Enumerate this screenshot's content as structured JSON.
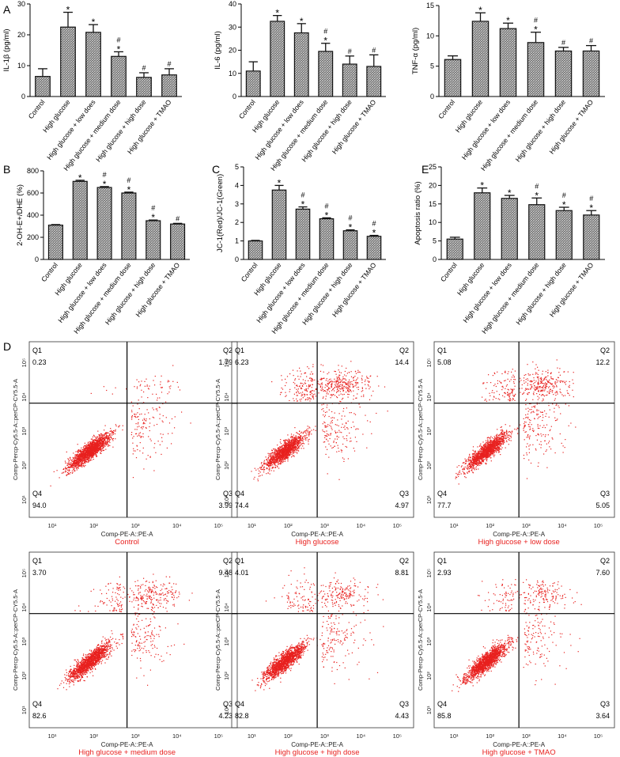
{
  "figure": {
    "panel_labels": [
      "A",
      "B",
      "C",
      "E",
      "D"
    ]
  },
  "colors": {
    "bar_fill": "#6e6e6e",
    "bar_hatch": "#ffffff",
    "axis": "#000000",
    "dot": "#e8211f",
    "caption": "#e8211f"
  },
  "chart_data": [
    {
      "id": "il1b",
      "type": "bar",
      "panel": "A",
      "ylabel": "IL-1β (pg/ml)",
      "categories": [
        "Control",
        "High glucose",
        "High glucose + low does",
        "High glucose + medium dose",
        "High glucose + high dose",
        "High glucose + TMAO"
      ],
      "values": [
        6.5,
        22.5,
        20.8,
        13,
        6.2,
        7
      ],
      "errors": [
        2.5,
        4.8,
        2.5,
        1.5,
        1.5,
        2
      ],
      "marks": [
        "",
        "*",
        "*",
        "#\n*",
        "#",
        "#"
      ],
      "ylim": [
        0,
        30
      ],
      "yticks": [
        0,
        10,
        20,
        30
      ]
    },
    {
      "id": "il6",
      "type": "bar",
      "panel": "",
      "ylabel": "IL-6 (pg/ml)",
      "categories": [
        "Control",
        "High glucose",
        "High glucose + low does",
        "High glucose + medium dose",
        "High glucose + high dose",
        "High glucose + TMAO"
      ],
      "values": [
        11,
        32.5,
        27.5,
        19.5,
        14,
        13
      ],
      "errors": [
        4,
        2.5,
        4,
        3.5,
        3.5,
        5
      ],
      "marks": [
        "",
        "*",
        "*",
        "#\n*",
        "#",
        "#"
      ],
      "ylim": [
        0,
        40
      ],
      "yticks": [
        0,
        10,
        20,
        30,
        40
      ]
    },
    {
      "id": "tnfa",
      "type": "bar",
      "panel": "",
      "ylabel": "TNF-α (pg/ml)",
      "categories": [
        "Control",
        "High glucose",
        "High glucose + low does",
        "High glucose + medium dose",
        "High glucose + high dose",
        "High glucose + TMAO"
      ],
      "values": [
        6.1,
        12.4,
        11.2,
        8.9,
        7.5,
        7.5
      ],
      "errors": [
        0.6,
        1.4,
        0.9,
        1.7,
        0.6,
        0.9
      ],
      "marks": [
        "",
        "*",
        "*",
        "#\n*",
        "#",
        "#"
      ],
      "ylim": [
        0,
        15
      ],
      "yticks": [
        0,
        5,
        10,
        15
      ]
    },
    {
      "id": "ros",
      "type": "bar",
      "panel": "B",
      "ylabel": "2-OH-E+/DHE (%)",
      "categories": [
        "Control",
        "High glucose",
        "High glucose + low does",
        "High glucose + medium dose",
        "High glucose + high dose",
        "High glucose + TMAO"
      ],
      "values": [
        310,
        705,
        650,
        600,
        350,
        320
      ],
      "errors": [
        5,
        10,
        8,
        8,
        6,
        6
      ],
      "marks": [
        "",
        "*",
        "#\n*",
        "#\n*",
        "#\n*",
        "#"
      ],
      "ylim": [
        0,
        800
      ],
      "yticks": [
        0,
        200,
        400,
        600,
        800
      ]
    },
    {
      "id": "jc1",
      "type": "bar",
      "panel": "C",
      "ylabel": "JC-1(Red)/JC-1(Green)",
      "categories": [
        "Control",
        "High glucose",
        "High glucose + low does",
        "High glucose + medium dose",
        "High glucose + high dose",
        "High glucose + TMAO"
      ],
      "values": [
        1,
        3.75,
        2.72,
        2.2,
        1.55,
        1.25
      ],
      "errors": [
        0.03,
        0.25,
        0.12,
        0.05,
        0.05,
        0.05
      ],
      "marks": [
        "",
        "*",
        "#\n*",
        "#\n*",
        "#\n*",
        "#\n*"
      ],
      "ylim": [
        0,
        5
      ],
      "yticks": [
        0,
        1,
        2,
        3,
        4,
        5
      ]
    },
    {
      "id": "apoptosis",
      "type": "bar",
      "panel": "E",
      "ylabel": "Apoptosis ratio (%)",
      "categories": [
        "Control",
        "High glucose",
        "High glucose + low does",
        "High glucose + medium dose",
        "High glucose + high dose",
        "High glucose + TMAO"
      ],
      "values": [
        5.5,
        18,
        16.5,
        14.8,
        13.2,
        12
      ],
      "errors": [
        0.5,
        1.3,
        0.8,
        1.8,
        0.9,
        1.2
      ],
      "marks": [
        "",
        "*",
        "*",
        "#\n*",
        "#\n*",
        "#\n*"
      ],
      "ylim": [
        0,
        25
      ],
      "yticks": [
        0,
        5,
        10,
        15,
        20,
        25
      ]
    },
    {
      "id": "flow",
      "type": "scatter",
      "panel": "D",
      "xlabel": "Comp-PE-A::PE-A",
      "ylabel": "Comp-Percp-Cy5.5-A::perCP-CY5.5-A",
      "xticks": [
        "10¹",
        "10²",
        "10³",
        "10⁴",
        "10⁵"
      ],
      "yticks": [
        "10¹",
        "10²",
        "10³",
        "10⁴",
        "10⁵"
      ],
      "quadrant_names": [
        "Q1",
        "Q2",
        "Q3",
        "Q4"
      ],
      "plots": [
        {
          "caption": "Control",
          "Q1": "0.23",
          "Q2": "1.79",
          "Q3": "3.99",
          "Q4": "94.0"
        },
        {
          "caption": "High glucose",
          "Q1": "6.23",
          "Q2": "14.4",
          "Q3": "4.97",
          "Q4": "74.4"
        },
        {
          "caption": "High glucose + low dose",
          "Q1": "5.08",
          "Q2": "12.2",
          "Q3": "5.05",
          "Q4": "77.7"
        },
        {
          "caption": "High glucose + medium dose",
          "Q1": "3.70",
          "Q2": "9.48",
          "Q3": "4.23",
          "Q4": "82.6"
        },
        {
          "caption": "High glucose + high dose",
          "Q1": "4.01",
          "Q2": "8.81",
          "Q3": "4.43",
          "Q4": "82.8"
        },
        {
          "caption": "High glucose + TMAO",
          "Q1": "2.93",
          "Q2": "7.60",
          "Q3": "3.64",
          "Q4": "85.8"
        }
      ]
    }
  ]
}
